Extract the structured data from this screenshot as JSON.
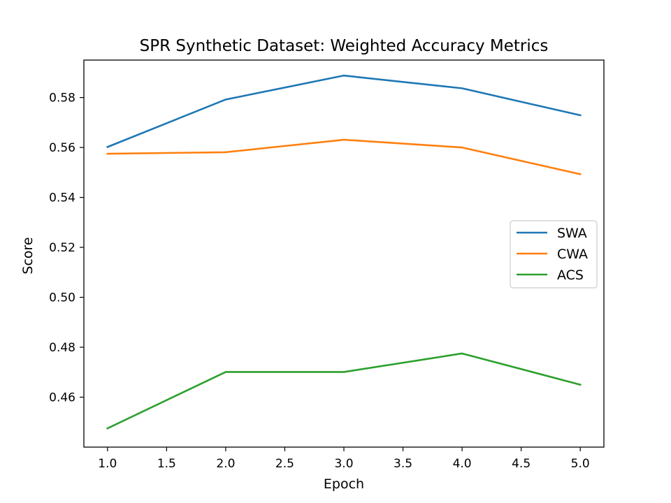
{
  "chart_data": {
    "type": "line",
    "title": "SPR Synthetic Dataset: Weighted Accuracy Metrics",
    "xlabel": "Epoch",
    "ylabel": "Score",
    "x": [
      1.0,
      2.0,
      3.0,
      4.0,
      5.0
    ],
    "xlim": [
      0.8,
      5.2
    ],
    "ylim": [
      0.44,
      0.595
    ],
    "xticks": [
      1.0,
      1.5,
      2.0,
      2.5,
      3.0,
      3.5,
      4.0,
      4.5,
      5.0
    ],
    "xtick_labels": [
      "1.0",
      "1.5",
      "2.0",
      "2.5",
      "3.0",
      "3.5",
      "4.0",
      "4.5",
      "5.0"
    ],
    "yticks": [
      0.46,
      0.48,
      0.5,
      0.52,
      0.54,
      0.56,
      0.58
    ],
    "ytick_labels": [
      "0.46",
      "0.48",
      "0.50",
      "0.52",
      "0.54",
      "0.56",
      "0.58"
    ],
    "grid": false,
    "legend_position": "center-right",
    "series": [
      {
        "name": "SWA",
        "color": "#1f77b4",
        "values": [
          0.5602,
          0.5792,
          0.5888,
          0.5837,
          0.5729
        ]
      },
      {
        "name": "CWA",
        "color": "#ff7f0e",
        "values": [
          0.5575,
          0.5581,
          0.5631,
          0.56,
          0.5493
        ]
      },
      {
        "name": "ACS",
        "color": "#2ca02c",
        "values": [
          0.4475,
          0.4701,
          0.4701,
          0.4775,
          0.465
        ]
      }
    ]
  }
}
